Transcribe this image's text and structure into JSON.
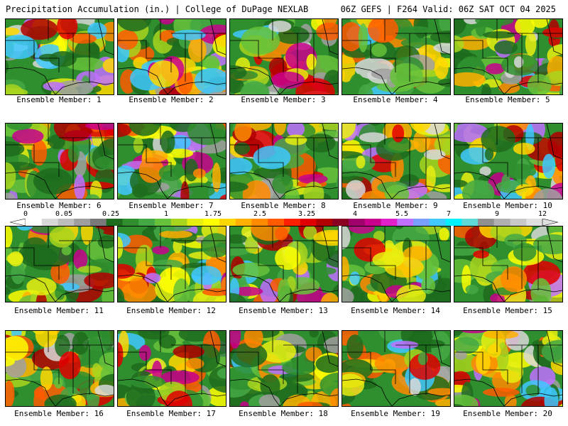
{
  "header": {
    "title": "Precipitation Accumulation (in.) | College of DuPage NEXLAB",
    "run_info": "06Z GEFS | F264 Valid: 06Z SAT OCT 04 2025"
  },
  "members": [
    "Ensemble Member: 1",
    "Ensemble Member: 2",
    "Ensemble Member: 3",
    "Ensemble Member: 4",
    "Ensemble Member: 5",
    "Ensemble Member: 6",
    "Ensemble Member: 7",
    "Ensemble Member: 8",
    "Ensemble Member: 9",
    "Ensemble Member: 10",
    "Ensemble Member: 11",
    "Ensemble Member: 12",
    "Ensemble Member: 13",
    "Ensemble Member: 14",
    "Ensemble Member: 15",
    "Ensemble Member: 16",
    "Ensemble Member: 17",
    "Ensemble Member: 18",
    "Ensemble Member: 19",
    "Ensemble Member: 20"
  ],
  "colorbar": {
    "ticks": [
      "0",
      "0.05",
      "0.25",
      "1",
      "1.75",
      "2.5",
      "3.25",
      "4",
      "5.5",
      "7",
      "9",
      "12"
    ],
    "colors": [
      "#ffffff",
      "#d9d9d9",
      "#bdbdbd",
      "#9e9e9e",
      "#7a7a7a",
      "#1d6b1d",
      "#2f8f2f",
      "#44a844",
      "#66c23a",
      "#a8d51e",
      "#e6ef10",
      "#ffff00",
      "#ffd700",
      "#ffb000",
      "#ff8a00",
      "#ff5a00",
      "#ff2000",
      "#e00000",
      "#b00000",
      "#8a0020",
      "#a0006a",
      "#c8008c",
      "#e020c8",
      "#c070ff",
      "#7aa0ff",
      "#40c8ff",
      "#00f0ff",
      "#60d8d8",
      "#909090",
      "#b0b0b0",
      "#c8c8c8",
      "#e0e0e0"
    ]
  },
  "field_palette": [
    "#1d6b1d",
    "#2f8f2f",
    "#44a844",
    "#66c23a",
    "#a8d51e",
    "#e6ef10",
    "#ffff00",
    "#ffd700",
    "#ffb000",
    "#ff8a00",
    "#ff5a00",
    "#e00000",
    "#b00000",
    "#c8008c",
    "#c070ff",
    "#40c8ff",
    "#a0a0a0",
    "#d8d8d8"
  ]
}
